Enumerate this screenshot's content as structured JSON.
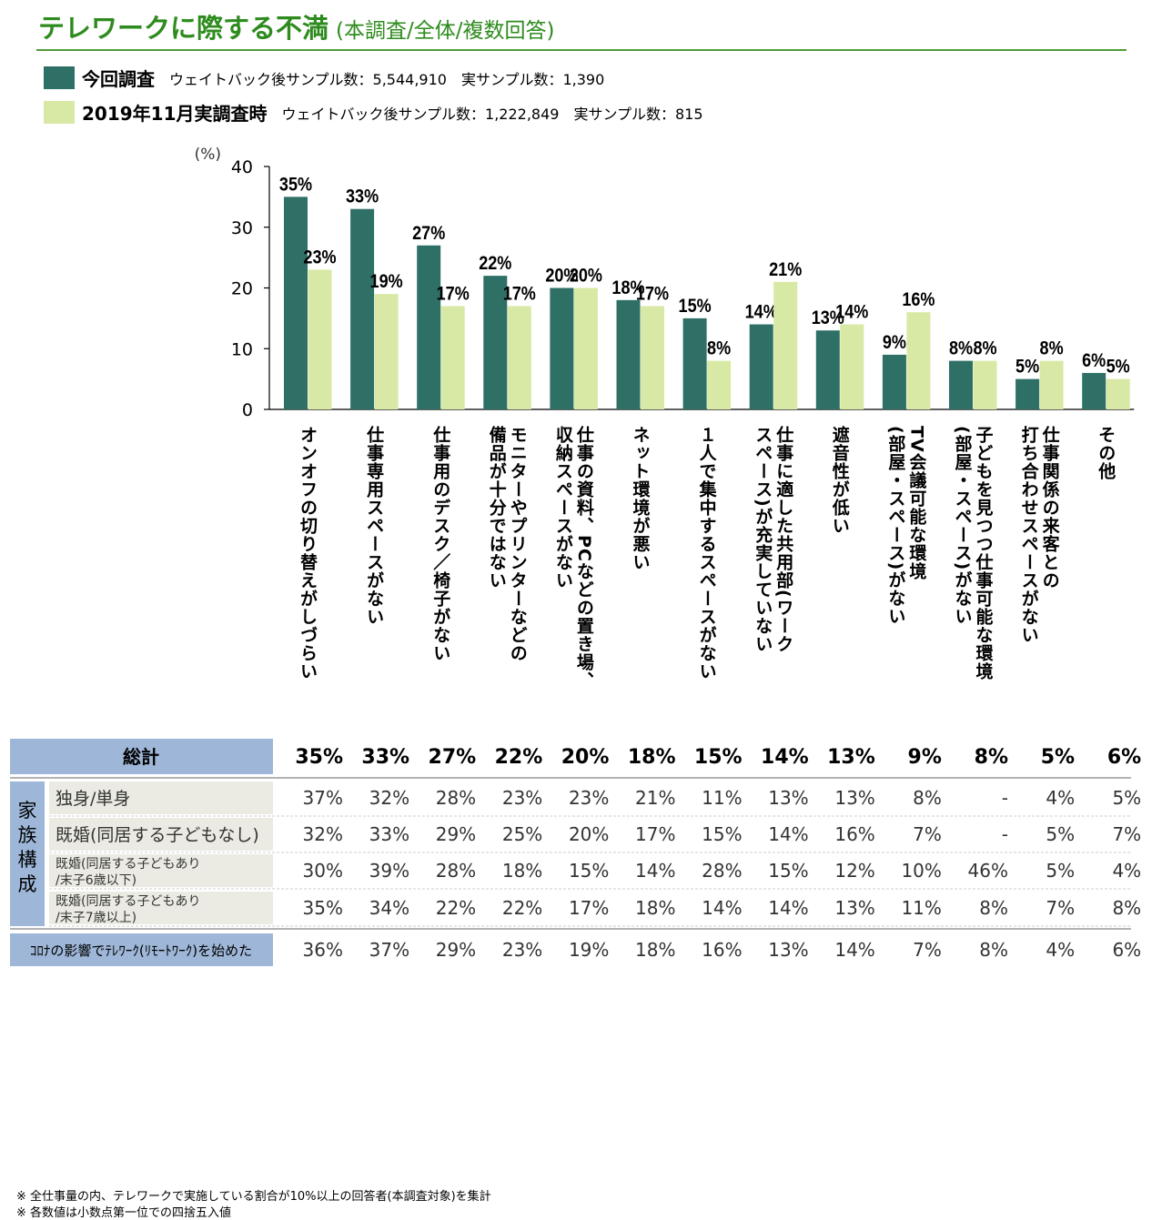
{
  "header": {
    "title": "テレワークに際する不満",
    "subtitle": "(本調査/全体/複数回答)"
  },
  "legend": [
    {
      "name": "今回調査",
      "note": "ウェイトバック後サンプル数：5,544,910　実サンプル数：1,390",
      "color": "#2e6f66"
    },
    {
      "name": "2019年11月実調査時",
      "note": "ウェイトバック後サンプル数：1,222,849　実サンプル数：815",
      "color": "#d8e9a6"
    }
  ],
  "chart_data": {
    "type": "bar",
    "ylabel": "(%)",
    "ylim": [
      0,
      40
    ],
    "yticks": [
      0,
      10,
      20,
      30,
      40
    ],
    "categories": [
      "オンオフの切り替えがしづらい",
      "仕事専用スペースがない",
      "仕事用のデスク／椅子がない",
      "モニターやプリンターなどの\n備品が十分ではない",
      "仕事の資料、PCなどの置き場、\n収納スペースがない",
      "ネット環境が悪い",
      "１人で集中するスペースがない",
      "仕事に適した共用部(ワーク\nスペース)が充実していない",
      "遮音性が低い",
      "TV会議可能な環境\n(部屋・スペース)がない",
      "子どもを見つつ仕事可能な環境\n(部屋・スペース)がない",
      "仕事関係の来客との\n打ち合わせスペースがない",
      "その他"
    ],
    "series": [
      {
        "name": "今回調査",
        "color": "#2e6f66",
        "values": [
          35,
          33,
          27,
          22,
          20,
          18,
          15,
          14,
          13,
          9,
          8,
          5,
          6
        ],
        "labels": [
          "35%",
          "33%",
          "27%",
          "22%",
          "20%",
          "18%",
          "15%",
          "14%",
          "13%",
          "9%",
          "8%",
          "5%",
          "6%"
        ]
      },
      {
        "name": "2019年11月実調査時",
        "color": "#d8e9a6",
        "values": [
          23,
          19,
          17,
          17,
          20,
          17,
          8,
          21,
          14,
          16,
          8,
          8,
          5
        ],
        "labels": [
          "23%",
          "19%",
          "17%",
          "17%",
          "20%",
          "17%",
          "8%",
          "21%",
          "14%",
          "16%",
          "8%",
          "8%",
          "5%"
        ]
      }
    ]
  },
  "table": {
    "total": {
      "label": "総計",
      "values": [
        "35%",
        "33%",
        "27%",
        "22%",
        "20%",
        "18%",
        "15%",
        "14%",
        "13%",
        "9%",
        "8%",
        "5%",
        "6%"
      ]
    },
    "group_label": "家族構成",
    "rows": [
      {
        "label": "独身/単身",
        "values": [
          "37%",
          "32%",
          "28%",
          "23%",
          "23%",
          "21%",
          "11%",
          "13%",
          "13%",
          "8%",
          "-",
          "4%",
          "5%"
        ]
      },
      {
        "label": "既婚(同居する子どもなし)",
        "values": [
          "32%",
          "33%",
          "29%",
          "25%",
          "20%",
          "17%",
          "15%",
          "14%",
          "16%",
          "7%",
          "-",
          "5%",
          "7%"
        ]
      },
      {
        "label": "既婚(同居する子どもあり\n/末子6歳以下)",
        "values": [
          "30%",
          "39%",
          "28%",
          "18%",
          "15%",
          "14%",
          "28%",
          "15%",
          "12%",
          "10%",
          "46%",
          "5%",
          "4%"
        ]
      },
      {
        "label": "既婚(同居する子どもあり\n/末子7歳以上)",
        "values": [
          "35%",
          "34%",
          "22%",
          "22%",
          "17%",
          "18%",
          "14%",
          "14%",
          "13%",
          "11%",
          "8%",
          "7%",
          "8%"
        ]
      }
    ],
    "covid": {
      "label": "ｺﾛﾅの影響でﾃﾚﾜｰｸ(ﾘﾓｰﾄﾜｰｸ)を始めた",
      "values": [
        "36%",
        "37%",
        "29%",
        "23%",
        "19%",
        "18%",
        "16%",
        "13%",
        "14%",
        "7%",
        "8%",
        "4%",
        "6%"
      ]
    }
  },
  "footnotes": [
    "※ 全仕事量の内、テレワークで実施している割合が10%以上の回答者(本調査対象)を集計",
    "※ 各数値は小数点第一位での四捨五入値"
  ]
}
